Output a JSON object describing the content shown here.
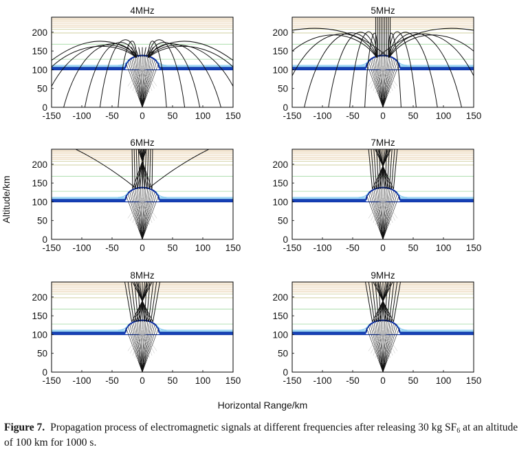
{
  "figure": {
    "ylabel": "Altitude/km",
    "xlabel": "Horizontal Range/km"
  },
  "caption": {
    "label": "Figure 7.",
    "text_before_sub": "Propagation process of electromagnetic signals at different frequencies after releasing 30 kg SF",
    "subscript": "6",
    "text_after_sub": " at an altitude of 100 km for 1000 s."
  },
  "colors": {
    "ray": "#111111",
    "layer_dark": "#0a2a9c",
    "layer_light": "#7ec8f0",
    "layer_green": "#9fd8a0",
    "layer_olive": "#c8c890",
    "layer_tan": "#e0c090"
  },
  "chart_data": [
    {
      "type": "line",
      "title": "4MHz",
      "xlim": [
        -150,
        150
      ],
      "ylim": [
        0,
        240
      ],
      "xticks": [
        -150,
        -100,
        -50,
        0,
        50,
        100,
        150
      ],
      "yticks": [
        0,
        50,
        100,
        150,
        200
      ],
      "source_point": [
        0,
        0
      ],
      "hole_bottom_alt": 105,
      "hole_top_alt": 138,
      "hole_half_width_km": 28,
      "penetration": "partial"
    },
    {
      "type": "line",
      "title": "5MHz",
      "xlim": [
        -150,
        150
      ],
      "ylim": [
        0,
        240
      ],
      "xticks": [
        -150,
        -100,
        -50,
        0,
        50,
        100,
        150
      ],
      "yticks": [
        0,
        50,
        100,
        150,
        200
      ],
      "source_point": [
        0,
        0
      ],
      "hole_bottom_alt": 105,
      "hole_top_alt": 138,
      "hole_half_width_km": 28,
      "penetration": "partial"
    },
    {
      "type": "line",
      "title": "6MHz",
      "xlim": [
        -150,
        150
      ],
      "ylim": [
        0,
        240
      ],
      "xticks": [
        -150,
        -100,
        -50,
        0,
        50,
        100,
        150
      ],
      "yticks": [
        0,
        50,
        100,
        150,
        200
      ],
      "source_point": [
        0,
        0
      ],
      "hole_bottom_alt": 105,
      "hole_top_alt": 138,
      "hole_half_width_km": 28,
      "penetration": "mostly"
    },
    {
      "type": "line",
      "title": "7MHz",
      "xlim": [
        -150,
        150
      ],
      "ylim": [
        0,
        240
      ],
      "xticks": [
        -150,
        -100,
        -50,
        0,
        50,
        100,
        150
      ],
      "yticks": [
        0,
        50,
        100,
        150,
        200
      ],
      "source_point": [
        0,
        0
      ],
      "hole_bottom_alt": 105,
      "hole_top_alt": 138,
      "hole_half_width_km": 28,
      "penetration": "full"
    },
    {
      "type": "line",
      "title": "8MHz",
      "xlim": [
        -150,
        150
      ],
      "ylim": [
        0,
        240
      ],
      "xticks": [
        -150,
        -100,
        -50,
        0,
        50,
        100,
        150
      ],
      "yticks": [
        0,
        50,
        100,
        150,
        200
      ],
      "source_point": [
        0,
        0
      ],
      "hole_bottom_alt": 105,
      "hole_top_alt": 138,
      "hole_half_width_km": 28,
      "penetration": "full"
    },
    {
      "type": "line",
      "title": "9MHz",
      "xlim": [
        -150,
        150
      ],
      "ylim": [
        0,
        240
      ],
      "xticks": [
        -150,
        -100,
        -50,
        0,
        50,
        100,
        150
      ],
      "yticks": [
        0,
        50,
        100,
        150,
        200
      ],
      "source_point": [
        0,
        0
      ],
      "hole_bottom_alt": 105,
      "hole_top_alt": 138,
      "hole_half_width_km": 28,
      "penetration": "full"
    }
  ]
}
